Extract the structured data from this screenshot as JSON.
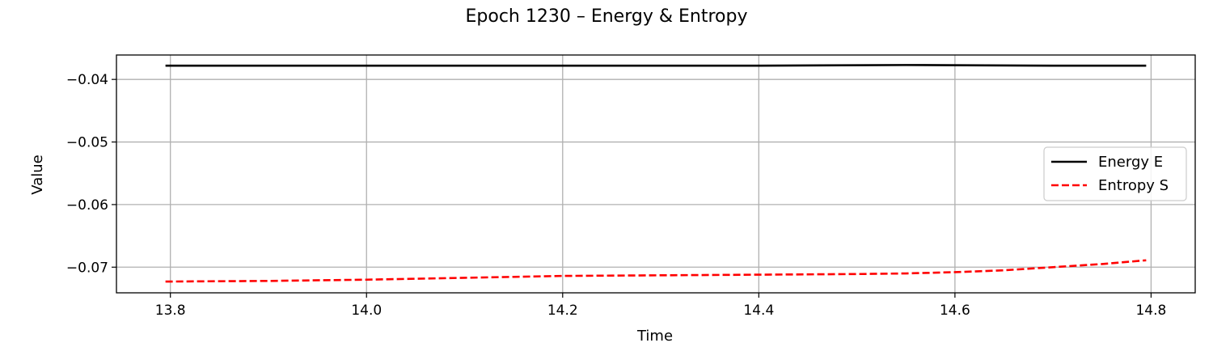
{
  "chart_data": {
    "type": "line",
    "title": "Epoch 1230 – Energy & Entropy",
    "xlabel": "Time",
    "ylabel": "Value",
    "xlim": [
      13.745,
      14.845
    ],
    "ylim": [
      -0.0741,
      -0.0361
    ],
    "xticks": [
      13.8,
      14.0,
      14.2,
      14.4,
      14.6,
      14.8
    ],
    "xtick_labels": [
      "13.8",
      "14.0",
      "14.2",
      "14.4",
      "14.6",
      "14.8"
    ],
    "yticks": [
      -0.04,
      -0.05,
      -0.06,
      -0.07
    ],
    "ytick_labels": [
      "−0.04",
      "−0.05",
      "−0.06",
      "−0.07"
    ],
    "grid": true,
    "legend_position": "center-right",
    "series": [
      {
        "name": "Energy E",
        "color": "#000000",
        "style": "solid",
        "x": [
          13.795,
          14.0,
          14.2,
          14.4,
          14.55,
          14.7,
          14.795
        ],
        "y": [
          -0.0378,
          -0.0378,
          -0.0378,
          -0.0378,
          -0.0377,
          -0.0378,
          -0.0378
        ]
      },
      {
        "name": "Entropy S",
        "color": "#ff0000",
        "style": "dashed",
        "x": [
          13.795,
          13.9,
          14.0,
          14.1,
          14.2,
          14.3,
          14.4,
          14.5,
          14.55,
          14.6,
          14.65,
          14.7,
          14.75,
          14.795
        ],
        "y": [
          -0.0723,
          -0.0722,
          -0.072,
          -0.0717,
          -0.0714,
          -0.0713,
          -0.0712,
          -0.0711,
          -0.071,
          -0.0708,
          -0.0705,
          -0.07,
          -0.0695,
          -0.0689
        ]
      }
    ]
  }
}
